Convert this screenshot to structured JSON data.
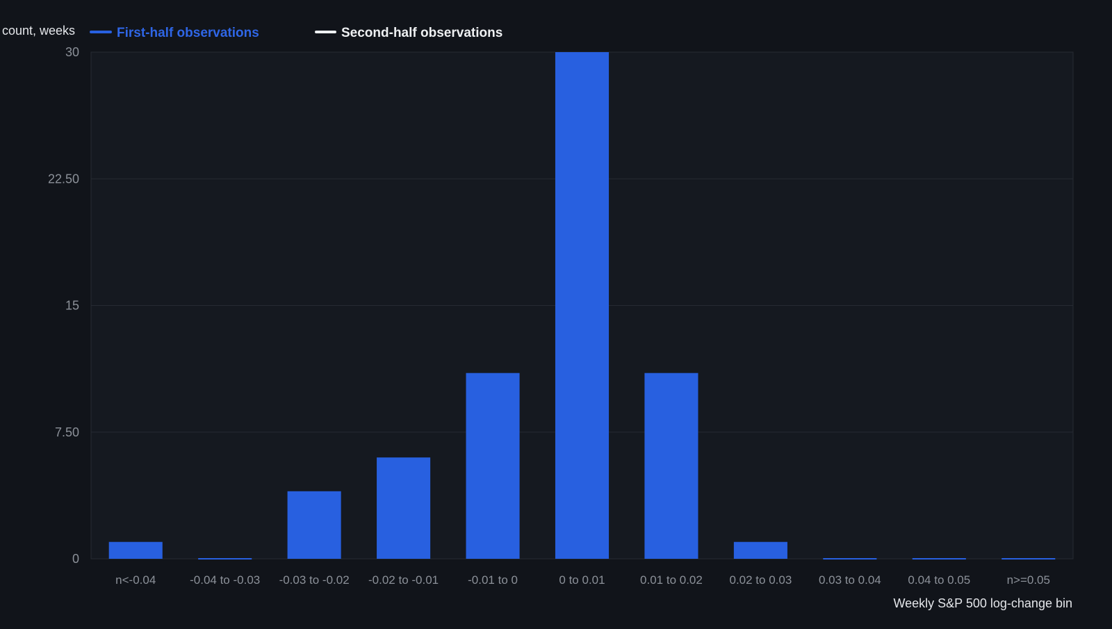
{
  "chart_data": {
    "type": "bar",
    "ylabel": "count, weeks",
    "xlabel": "Weekly S&P 500 log-change bin",
    "categories": [
      "n<-0.04",
      "-0.04 to -0.03",
      "-0.03 to -0.02",
      "-0.02 to -0.01",
      "-0.01 to 0",
      "0 to 0.01",
      "0.01 to 0.02",
      "0.02 to 0.03",
      "0.03 to 0.04",
      "0.04 to 0.05",
      "n>=0.05"
    ],
    "series": [
      {
        "name": "First-half observations",
        "color": "#2860e0",
        "values": [
          1,
          0,
          4,
          6,
          11,
          30,
          11,
          1,
          0,
          0,
          0
        ]
      },
      {
        "name": "Second-half observations",
        "color": "#eef0f2",
        "values": [
          0,
          0,
          0,
          0,
          0,
          0,
          0,
          0,
          0,
          0,
          0
        ]
      }
    ],
    "ylim": [
      0,
      30
    ],
    "yticks": [
      0,
      7.5,
      15,
      22.5,
      30
    ],
    "ytick_labels": [
      "0",
      "7.50",
      "15",
      "22.50",
      "30"
    ],
    "grid": true,
    "legend_position": "top-left"
  }
}
